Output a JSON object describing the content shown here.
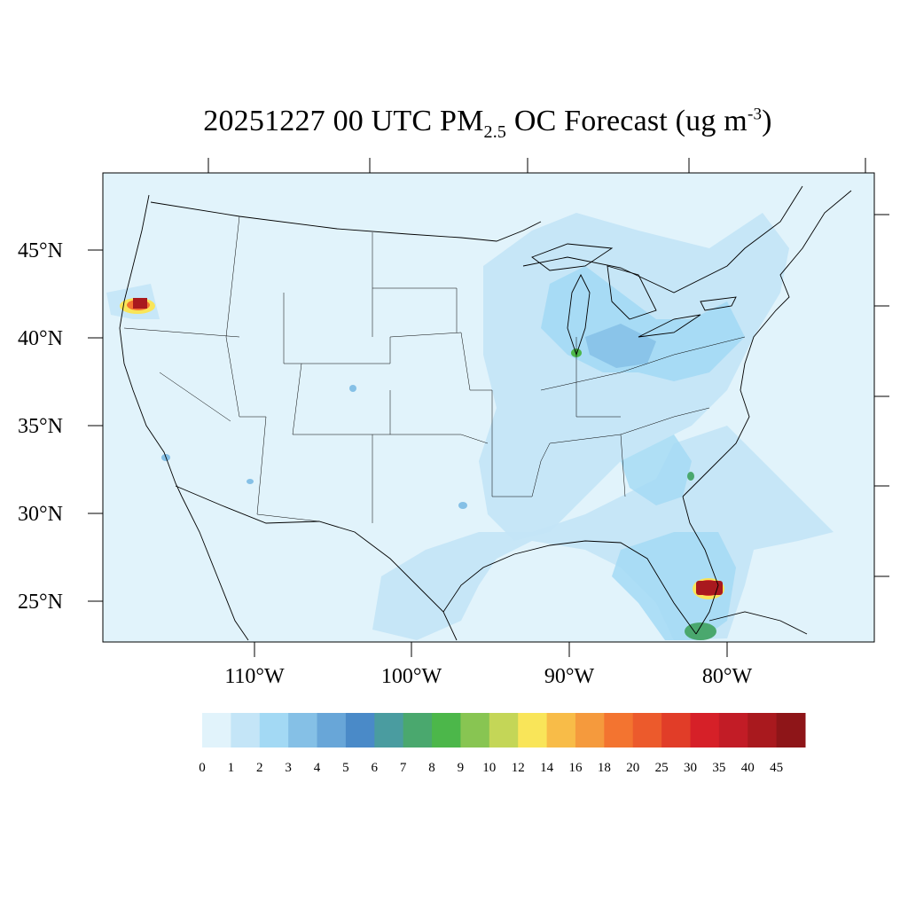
{
  "title": {
    "prefix": "20251227 00 UTC PM",
    "subscript": "2.5",
    "middle": " OC Forecast (ug m",
    "superscript": "-3",
    "suffix": ")"
  },
  "lat_labels": [
    "45°N",
    "40°N",
    "35°N",
    "30°N",
    "25°N"
  ],
  "lon_labels": [
    "110°W",
    "100°W",
    "90°W",
    "80°W"
  ],
  "colorbar": {
    "colors": [
      "#e1f3fb",
      "#c4e5f7",
      "#a3d9f4",
      "#85c0e6",
      "#68a6d8",
      "#4a8ac8",
      "#4a9ca0",
      "#4aa86e",
      "#4cb74a",
      "#88c552",
      "#c4d657",
      "#f9e559",
      "#f8bc48",
      "#f59a3d",
      "#f37430",
      "#ec5a2c",
      "#e13d28",
      "#d62028",
      "#c21c26",
      "#a9191e",
      "#8e1518"
    ],
    "labels": [
      "0",
      "1",
      "2",
      "3",
      "4",
      "5",
      "6",
      "7",
      "8",
      "9",
      "10",
      "12",
      "14",
      "16",
      "18",
      "20",
      "25",
      "30",
      "35",
      "40",
      "45"
    ]
  },
  "map_colors": {
    "background": "#e1f3fb",
    "light": "#c4e5f7",
    "medium": "#a3d9f4",
    "dark": "#85c0e6",
    "hot": "#a9191e",
    "warm": "#f9e559",
    "green": "#4aa86e"
  }
}
